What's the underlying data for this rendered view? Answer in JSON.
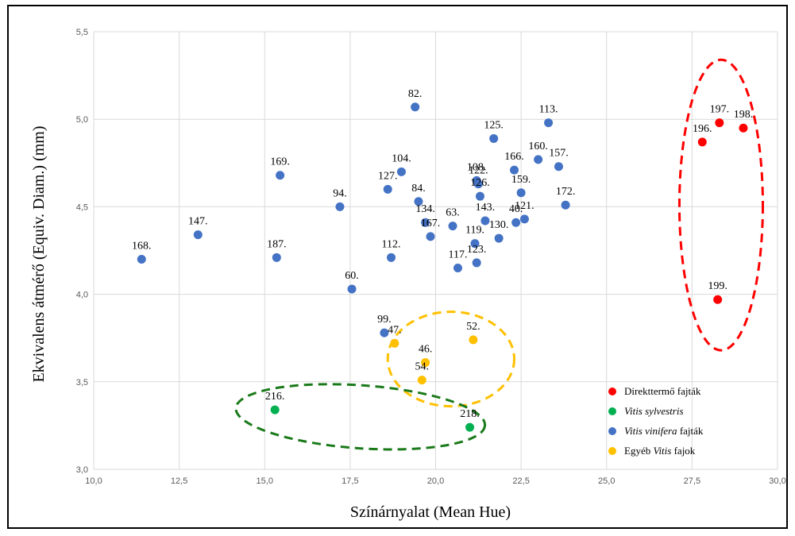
{
  "chart_data": {
    "type": "scatter",
    "xlabel": "Színárnyalat (Mean Hue)",
    "ylabel": "Ekvivalens átmérő (Equiv. Diam.) (mm)",
    "xlim": [
      10.0,
      30.0
    ],
    "ylim": [
      3.0,
      5.5
    ],
    "x_ticks": [
      "10,0",
      "12,5",
      "15,0",
      "17,5",
      "20,0",
      "22,5",
      "25,0",
      "27,5",
      "30,0"
    ],
    "y_ticks": [
      "3,0",
      "3,5",
      "4,0",
      "4,5",
      "5,0",
      "5,5"
    ],
    "grid": true,
    "legend_position": "bottom-right",
    "series": [
      {
        "name": "Direkttermő fajták",
        "color": "#ff0000",
        "points": [
          {
            "label": "197.",
            "x": 28.3,
            "y": 4.98
          },
          {
            "label": "198.",
            "x": 29.0,
            "y": 4.95
          },
          {
            "label": "196.",
            "x": 27.8,
            "y": 4.87
          },
          {
            "label": "199.",
            "x": 28.25,
            "y": 3.97
          }
        ]
      },
      {
        "name": "Vitis sylvestris",
        "color": "#00b050",
        "points": [
          {
            "label": "216.",
            "x": 15.3,
            "y": 3.34
          },
          {
            "label": "218.",
            "x": 21.0,
            "y": 3.24
          }
        ]
      },
      {
        "name": "Vitis vinifera fajták",
        "color": "#4472c4",
        "points": [
          {
            "label": "82.",
            "x": 19.4,
            "y": 5.07
          },
          {
            "label": "113.",
            "x": 23.3,
            "y": 4.98
          },
          {
            "label": "125.",
            "x": 21.7,
            "y": 4.89
          },
          {
            "label": "160.",
            "x": 23.0,
            "y": 4.77
          },
          {
            "label": "157.",
            "x": 23.6,
            "y": 4.73
          },
          {
            "label": "166.",
            "x": 22.3,
            "y": 4.71
          },
          {
            "label": "104.",
            "x": 19.0,
            "y": 4.7
          },
          {
            "label": "169.",
            "x": 15.45,
            "y": 4.68
          },
          {
            "label": "108.",
            "x": 21.2,
            "y": 4.65
          },
          {
            "label": "122.",
            "x": 21.25,
            "y": 4.63
          },
          {
            "label": "127.",
            "x": 18.6,
            "y": 4.6
          },
          {
            "label": "159.",
            "x": 22.5,
            "y": 4.58
          },
          {
            "label": "126.",
            "x": 21.3,
            "y": 4.56
          },
          {
            "label": "84.",
            "x": 19.5,
            "y": 4.53
          },
          {
            "label": "172.",
            "x": 23.8,
            "y": 4.51
          },
          {
            "label": "94.",
            "x": 17.2,
            "y": 4.5
          },
          {
            "label": "121.",
            "x": 22.6,
            "y": 4.43
          },
          {
            "label": "143.",
            "x": 21.45,
            "y": 4.42
          },
          {
            "label": "40.",
            "x": 22.35,
            "y": 4.41
          },
          {
            "label": "134.",
            "x": 19.7,
            "y": 4.41
          },
          {
            "label": "63.",
            "x": 20.5,
            "y": 4.39
          },
          {
            "label": "147.",
            "x": 13.05,
            "y": 4.34
          },
          {
            "label": "167.",
            "x": 19.85,
            "y": 4.33
          },
          {
            "label": "130.",
            "x": 21.85,
            "y": 4.32
          },
          {
            "label": "119.",
            "x": 21.15,
            "y": 4.29
          },
          {
            "label": "168.",
            "x": 11.4,
            "y": 4.2
          },
          {
            "label": "187.",
            "x": 15.35,
            "y": 4.21
          },
          {
            "label": "112.",
            "x": 18.7,
            "y": 4.21
          },
          {
            "label": "123.",
            "x": 21.2,
            "y": 4.18
          },
          {
            "label": "117.",
            "x": 20.65,
            "y": 4.15
          },
          {
            "label": "60.",
            "x": 17.55,
            "y": 4.03
          },
          {
            "label": "99.",
            "x": 18.5,
            "y": 3.78
          }
        ]
      },
      {
        "name": "Egyéb Vitis fajok",
        "color": "#ffc000",
        "points": [
          {
            "label": "52.",
            "x": 21.1,
            "y": 3.74
          },
          {
            "label": "47.",
            "x": 18.8,
            "y": 3.72
          },
          {
            "label": "46.",
            "x": 19.7,
            "y": 3.61
          },
          {
            "label": "54.",
            "x": 19.6,
            "y": 3.51
          }
        ]
      }
    ],
    "legend": [
      {
        "pre": "",
        "italic": "",
        "text": "Direkttermő  fajták",
        "color": "#ff0000"
      },
      {
        "pre": "",
        "italic": "Vitis sylvestris",
        "text": "",
        "color": "#00b050"
      },
      {
        "pre": "",
        "italic": "Vitis vinifera",
        "text": " fajták",
        "color": "#4472c4"
      },
      {
        "pre": "Egyéb ",
        "italic": "Vitis",
        "text": " fajok",
        "color": "#ffc000"
      }
    ],
    "cluster_ellipses": [
      {
        "color": "#ff0000",
        "cx": 28.35,
        "cy": 4.51,
        "rx": 1.22,
        "ry": 0.83
      },
      {
        "color": "#ffc000",
        "cx": 20.45,
        "cy": 3.63,
        "rx": 1.85,
        "ry": 0.27
      },
      {
        "color": "#1a7a1a",
        "cx": 17.8,
        "cy": 3.3,
        "rx": 3.65,
        "ry": 0.18
      }
    ]
  }
}
